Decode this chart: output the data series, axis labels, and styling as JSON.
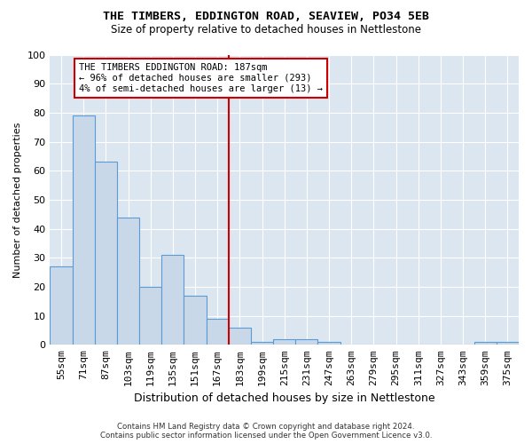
{
  "title": "THE TIMBERS, EDDINGTON ROAD, SEAVIEW, PO34 5EB",
  "subtitle": "Size of property relative to detached houses in Nettlestone",
  "xlabel": "Distribution of detached houses by size in Nettlestone",
  "ylabel": "Number of detached properties",
  "bar_color": "#c8d8e8",
  "bar_edge_color": "#5b9bd5",
  "background_color": "#dce6f0",
  "bins": [
    "55sqm",
    "71sqm",
    "87sqm",
    "103sqm",
    "119sqm",
    "135sqm",
    "151sqm",
    "167sqm",
    "183sqm",
    "199sqm",
    "215sqm",
    "231sqm",
    "247sqm",
    "263sqm",
    "279sqm",
    "295sqm",
    "311sqm",
    "327sqm",
    "343sqm",
    "359sqm",
    "375sqm"
  ],
  "values": [
    27,
    79,
    63,
    44,
    20,
    31,
    17,
    9,
    6,
    1,
    2,
    2,
    1,
    0,
    0,
    0,
    0,
    0,
    0,
    1,
    1
  ],
  "vline_color": "#cc0000",
  "ylim": [
    0,
    100
  ],
  "yticks": [
    0,
    10,
    20,
    30,
    40,
    50,
    60,
    70,
    80,
    90,
    100
  ],
  "annotation_text": "THE TIMBERS EDDINGTON ROAD: 187sqm\n← 96% of detached houses are smaller (293)\n4% of semi-detached houses are larger (13) →",
  "annotation_box_color": "#ffffff",
  "annotation_box_edge": "#cc0000",
  "footer_line1": "Contains HM Land Registry data © Crown copyright and database right 2024.",
  "footer_line2": "Contains public sector information licensed under the Open Government Licence v3.0."
}
